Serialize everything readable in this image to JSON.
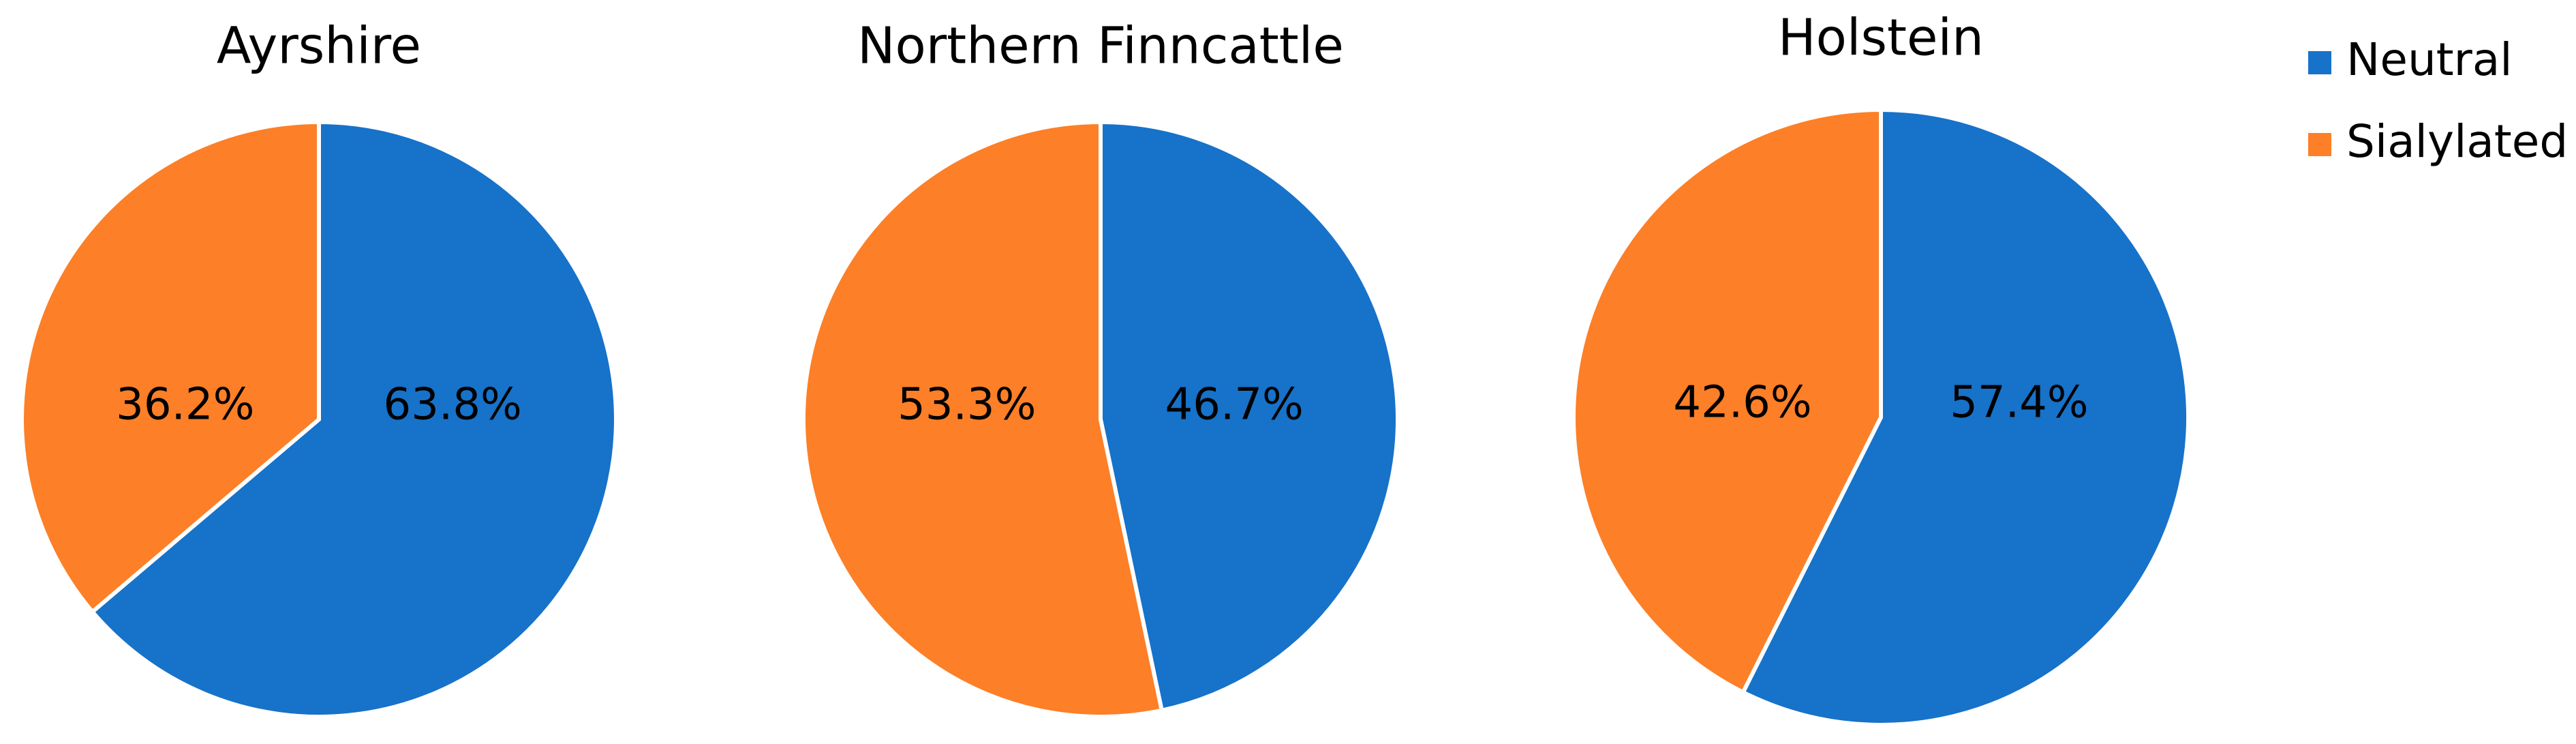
{
  "chart_data": [
    {
      "type": "pie",
      "title": "Ayrshire",
      "categories": [
        "Neutral",
        "Sialylated"
      ],
      "values": [
        63.8,
        36.2
      ],
      "value_labels": [
        "63.8%",
        "36.2%"
      ],
      "colors": [
        "#1772c9",
        "#fd7f27"
      ]
    },
    {
      "type": "pie",
      "title": "Northern Finncattle",
      "categories": [
        "Neutral",
        "Sialylated"
      ],
      "values": [
        46.7,
        53.3
      ],
      "value_labels": [
        "46.7%",
        "53.3%"
      ],
      "colors": [
        "#1772c9",
        "#fd7f27"
      ]
    },
    {
      "type": "pie",
      "title": "Holstein",
      "categories": [
        "Neutral",
        "Sialylated"
      ],
      "values": [
        57.4,
        42.6
      ],
      "value_labels": [
        "57.4%",
        "42.6%"
      ],
      "colors": [
        "#1772c9",
        "#fd7f27"
      ]
    }
  ]
}
